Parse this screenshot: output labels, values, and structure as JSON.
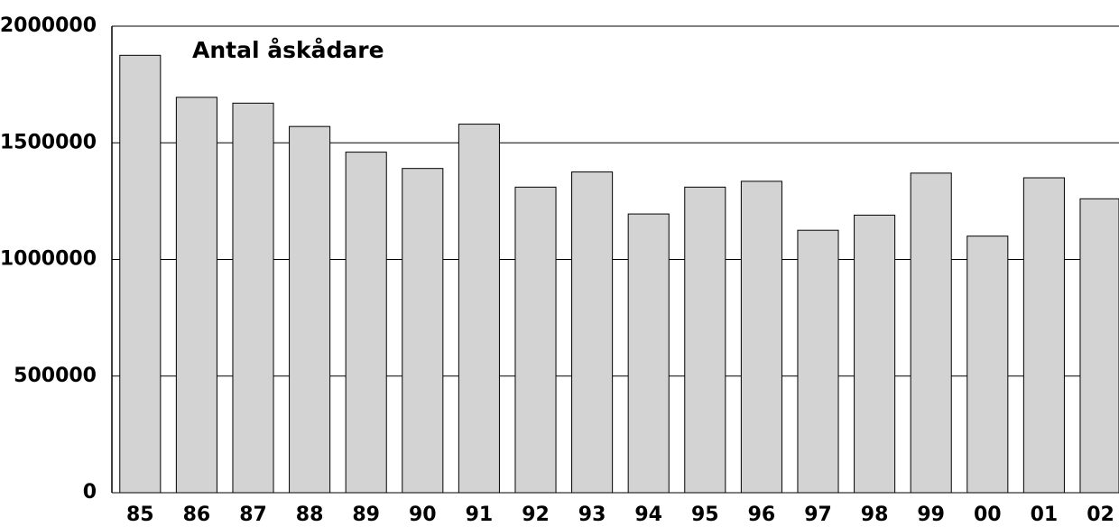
{
  "chart_data": {
    "type": "bar",
    "title": "Antal åskådare",
    "categories": [
      "85",
      "86",
      "87",
      "88",
      "89",
      "90",
      "91",
      "92",
      "93",
      "94",
      "95",
      "96",
      "97",
      "98",
      "99",
      "00",
      "01",
      "02"
    ],
    "values": [
      1875000,
      1695000,
      1670000,
      1570000,
      1460000,
      1390000,
      1580000,
      1310000,
      1375000,
      1195000,
      1310000,
      1335000,
      1125000,
      1190000,
      1370000,
      1100000,
      1350000,
      1260000
    ],
    "color": "#d3d3d3",
    "ylim": [
      0,
      2000000
    ],
    "yticks": [
      0,
      500000,
      1000000,
      1500000,
      2000000
    ],
    "grid": true
  }
}
